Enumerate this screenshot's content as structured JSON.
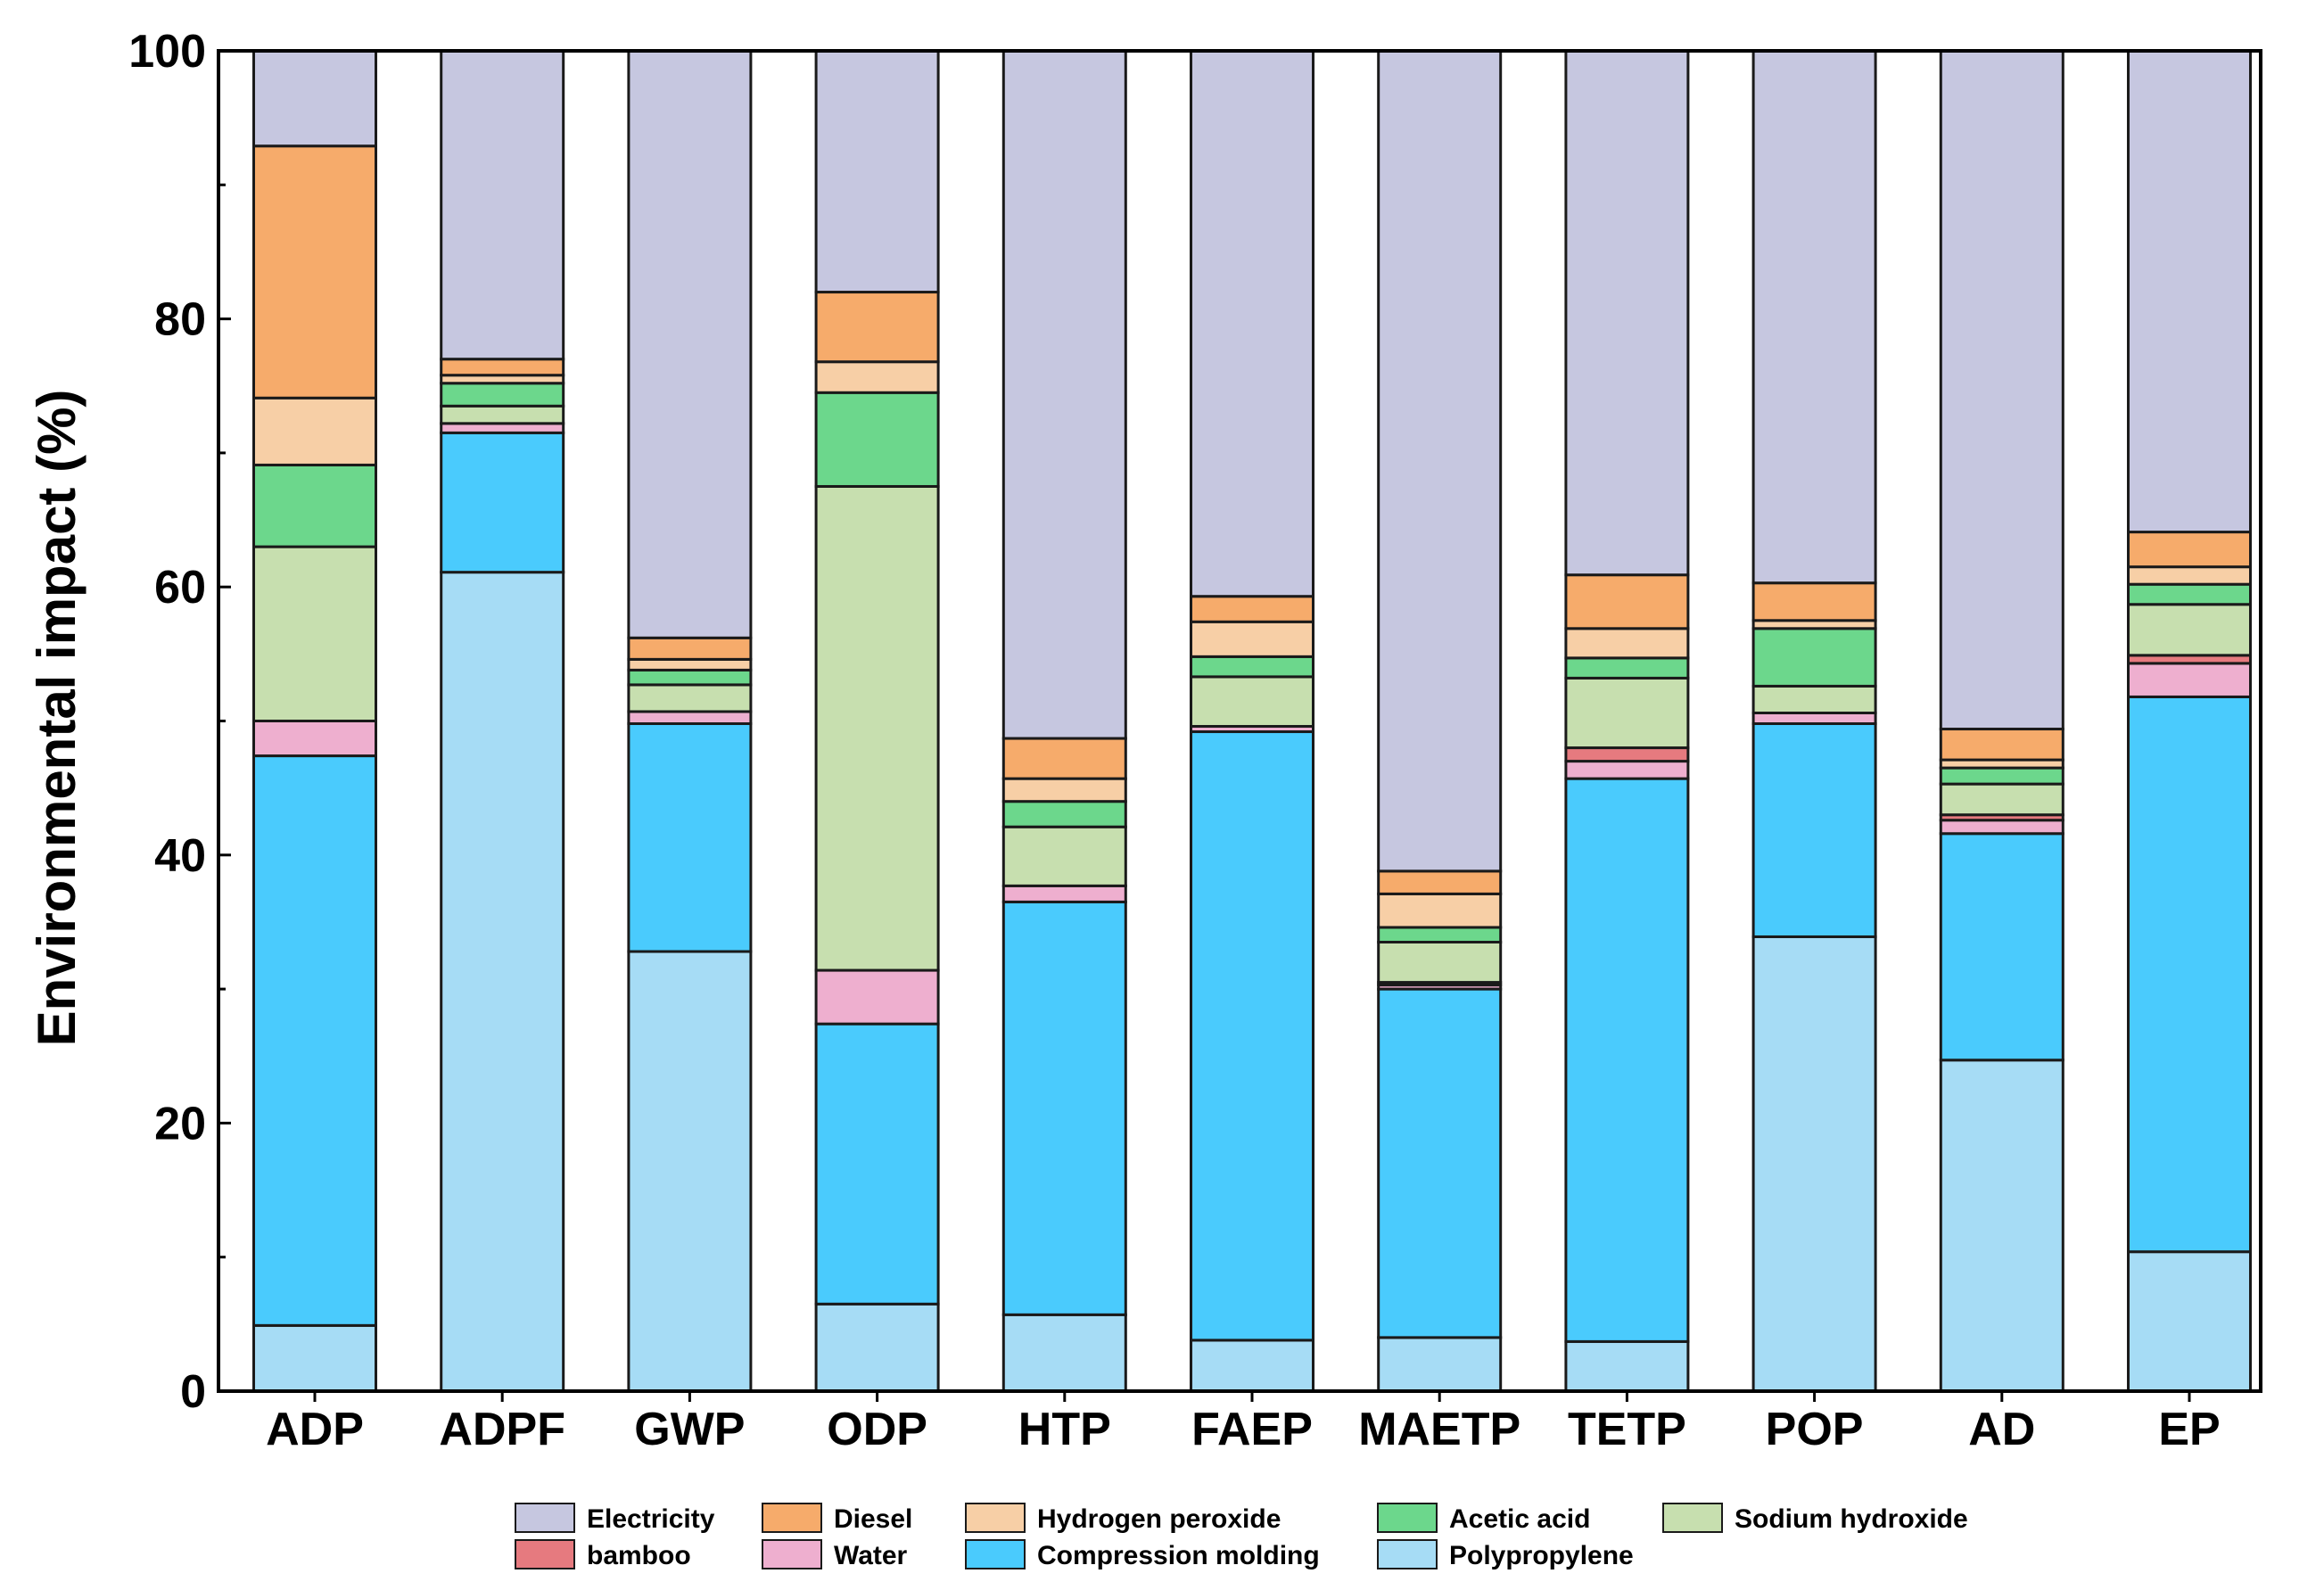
{
  "chart_data": {
    "type": "bar",
    "stacked": true,
    "title": "",
    "xlabel": "",
    "ylabel": "Environmental impact (%)",
    "ylim": [
      0,
      100
    ],
    "yticks": [
      "0",
      "20",
      "40",
      "60",
      "80",
      "100"
    ],
    "legend_position": "bottom",
    "categories": [
      "ADP",
      "ADPF",
      "GWP",
      "ODP",
      "HTP",
      "FAEP",
      "MAETP",
      "TETP",
      "POP",
      "AD",
      "EP"
    ],
    "series": [
      {
        "name": "Polypropylene",
        "color": "#A6DCF5",
        "values": [
          4.9,
          61.1,
          32.8,
          6.5,
          5.7,
          3.8,
          4.0,
          3.7,
          33.9,
          24.7,
          10.4
        ]
      },
      {
        "name": "Compression molding",
        "color": "#4ACBFD",
        "values": [
          42.5,
          10.4,
          17.0,
          20.9,
          30.8,
          45.4,
          26.0,
          42.0,
          15.9,
          16.9,
          41.4
        ]
      },
      {
        "name": "Water",
        "color": "#EEAFCF",
        "values": [
          2.6,
          0.7,
          0.9,
          4.0,
          1.2,
          0.4,
          0.3,
          1.3,
          0.8,
          1.0,
          2.5
        ]
      },
      {
        "name": "bamboo",
        "color": "#E67A7F",
        "values": [
          0.0,
          0.0,
          0.0,
          0.0,
          0.0,
          0.0,
          0.2,
          1.0,
          0.0,
          0.4,
          0.6
        ]
      },
      {
        "name": "Sodium hydroxide",
        "color": "#C7DFAF",
        "values": [
          13.0,
          1.3,
          2.0,
          36.1,
          4.4,
          3.7,
          3.0,
          5.2,
          2.0,
          2.3,
          3.8
        ]
      },
      {
        "name": "Acetic acid",
        "color": "#6CD78C",
        "values": [
          6.1,
          1.7,
          1.1,
          7.0,
          1.9,
          1.5,
          1.1,
          1.5,
          4.3,
          1.2,
          1.5
        ]
      },
      {
        "name": "Hydrogen peroxide",
        "color": "#F7CFA6",
        "values": [
          5.0,
          0.6,
          0.8,
          2.3,
          1.7,
          2.6,
          2.5,
          2.2,
          0.6,
          0.6,
          1.3
        ]
      },
      {
        "name": "Diesel",
        "color": "#F6AB6B",
        "values": [
          18.8,
          1.2,
          1.6,
          5.2,
          3.0,
          1.9,
          1.7,
          4.0,
          2.8,
          2.3,
          2.6
        ]
      },
      {
        "name": "Electricity",
        "color": "#C6C7E0",
        "values": [
          7.1,
          23.0,
          43.8,
          18.0,
          51.3,
          40.7,
          61.2,
          39.1,
          39.7,
          50.6,
          35.9
        ]
      }
    ],
    "legend_order": [
      "Electricity",
      "Diesel",
      "Hydrogen peroxide",
      "Acetic acid",
      "Sodium hydroxide",
      "bamboo",
      "Water",
      "Compression molding",
      "Polypropylene"
    ]
  }
}
